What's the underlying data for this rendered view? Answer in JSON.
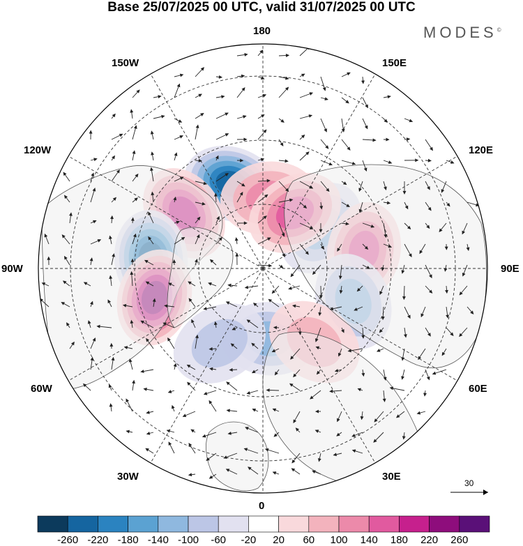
{
  "title": "Base 25/07/2025 00 UTC, valid 31/07/2025 00 UTC",
  "brand": {
    "name": "MODES",
    "mark": "©"
  },
  "longitude_labels": {
    "l180": "180",
    "l150w": "150W",
    "l150e": "150E",
    "l120w": "120W",
    "l120e": "120E",
    "l90w": "90W",
    "l90e": "90E",
    "l60w": "60W",
    "l60e": "60E",
    "l30w": "30W",
    "l30e": "30E",
    "l0": "0"
  },
  "reference_vector": {
    "label": "30"
  },
  "colorbar": {
    "labels": [
      "-260",
      "-220",
      "-180",
      "-140",
      "-100",
      "-60",
      "-20",
      "20",
      "60",
      "100",
      "140",
      "180",
      "220",
      "260"
    ],
    "colors": [
      "#0c3a5c",
      "#1565a0",
      "#2b83c0",
      "#5ba2d2",
      "#8fb8df",
      "#bcc6e6",
      "#e2e1f0",
      "#ffffff",
      "#f9d9dc",
      "#f3b3bd",
      "#ec8aaa",
      "#e15a9f",
      "#c6208d",
      "#8e0d7c",
      "#5a1078"
    ]
  },
  "anomalies": [
    {
      "name": "low-nw-pacific",
      "lon": -160,
      "lat": 62,
      "value": -230
    },
    {
      "name": "high-alaska-east",
      "lon": -125,
      "lat": 60,
      "value": 160
    },
    {
      "name": "low-hudson",
      "lon": -95,
      "lat": 55,
      "value": -200
    },
    {
      "name": "high-labrador",
      "lon": -75,
      "lat": 55,
      "value": 200
    },
    {
      "name": "low-sib-east",
      "lon": 125,
      "lat": 68,
      "value": -110
    },
    {
      "name": "high-siberia",
      "lon": 100,
      "lat": 58,
      "value": 130
    },
    {
      "name": "low-central-asia",
      "lon": 70,
      "lat": 60,
      "value": -100
    },
    {
      "name": "low-scandinavia",
      "lon": 5,
      "lat": 68,
      "value": -90
    },
    {
      "name": "high-e-europe",
      "lon": 35,
      "lat": 62,
      "value": 70
    },
    {
      "name": "high-pacific-n",
      "lon": 175,
      "lat": 68,
      "value": 100
    },
    {
      "name": "high-bering",
      "lon": 150,
      "lat": 70,
      "value": 150
    },
    {
      "name": "low-atlantic",
      "lon": -30,
      "lat": 63,
      "value": -60
    }
  ]
}
